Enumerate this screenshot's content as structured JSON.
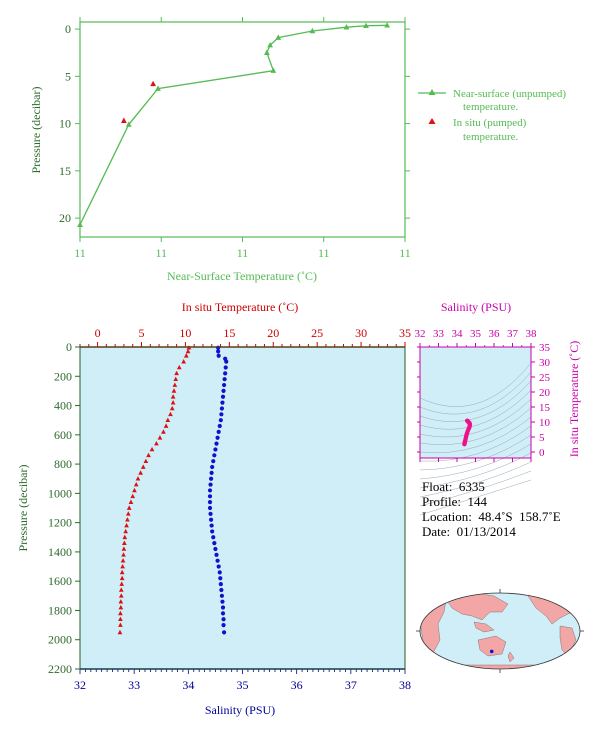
{
  "colors": {
    "green": "#55bb55",
    "green_dark": "#2e6b2e",
    "red": "#dd1111",
    "red_axis": "#cc0000",
    "blue": "#1111cc",
    "blue_axis": "#000099",
    "magenta": "#cc00aa",
    "pink_marker": "#ee1188",
    "panel_bg": "#cfeef8",
    "land": "#f2a6a6"
  },
  "chart_data": [
    {
      "type": "line",
      "xlabel": "Near-Surface Temperature (˚C)",
      "ylabel": "Pressure (decibar)",
      "xticks": [
        "11",
        "11",
        "11",
        "11",
        "11"
      ],
      "yticks": [
        0,
        5,
        10,
        15,
        20
      ],
      "ylim": [
        0,
        22
      ],
      "legend": {
        "placement": "right",
        "entries": [
          {
            "label_line1": "Near-surface (unpumped)",
            "label_line2": "temperature."
          },
          {
            "label_line1": "In situ (pumped)",
            "label_line2": "temperature."
          }
        ]
      },
      "series": [
        {
          "name": "Near-surface (unpumped) temperature.",
          "marker": "triangle",
          "x": [
            0.0,
            0.15,
            0.24,
            0.595,
            0.575,
            0.585,
            0.61,
            0.715,
            0.82,
            0.88,
            0.945
          ],
          "y": [
            20.7,
            10.1,
            6.3,
            4.4,
            2.5,
            1.7,
            0.9,
            0.2,
            -0.2,
            -0.35,
            -0.4
          ]
        },
        {
          "name": "In situ (pumped) temperature.",
          "marker": "triangle",
          "x": [
            0.135,
            0.225
          ],
          "y": [
            9.7,
            5.8
          ]
        }
      ]
    },
    {
      "type": "scatter",
      "top_xlabel": "In situ Temperature (˚C)",
      "bottom_xlabel": "Salinity (PSU)",
      "ylabel": "Pressure (decibar)",
      "temperature_ticks": [
        0,
        5,
        10,
        15,
        20,
        25,
        30,
        35
      ],
      "salinity_ticks": [
        32,
        33,
        34,
        35,
        36,
        37,
        38
      ],
      "pressure_ticks": [
        0,
        200,
        400,
        600,
        800,
        1000,
        1200,
        1400,
        1600,
        1800,
        2000,
        2200
      ],
      "series": [
        {
          "name": "In situ Temperature",
          "pressure": [
            5,
            30,
            60,
            100,
            140,
            180,
            220,
            260,
            300,
            340,
            380,
            420,
            460,
            500,
            540,
            580,
            620,
            660,
            700,
            740,
            780,
            820,
            860,
            900,
            940,
            980,
            1020,
            1060,
            1100,
            1140,
            1180,
            1220,
            1260,
            1300,
            1340,
            1380,
            1420,
            1460,
            1500,
            1540,
            1580,
            1620,
            1660,
            1700,
            1740,
            1780,
            1820,
            1860,
            1900,
            1950
          ],
          "values": [
            10.4,
            10.3,
            10.1,
            9.8,
            9.3,
            9.0,
            8.9,
            8.8,
            8.7,
            8.6,
            8.6,
            8.5,
            8.3,
            8.0,
            7.8,
            7.5,
            7.1,
            6.7,
            6.2,
            5.8,
            5.5,
            5.2,
            4.9,
            4.6,
            4.4,
            4.2,
            4.0,
            3.8,
            3.6,
            3.5,
            3.4,
            3.3,
            3.2,
            3.1,
            3.05,
            3.0,
            2.95,
            2.9,
            2.85,
            2.8,
            2.8,
            2.75,
            2.7,
            2.7,
            2.65,
            2.65,
            2.6,
            2.6,
            2.6,
            2.55
          ]
        },
        {
          "name": "Salinity",
          "pressure": [
            5,
            30,
            60,
            80,
            100,
            140,
            180,
            220,
            260,
            300,
            340,
            380,
            420,
            460,
            500,
            540,
            580,
            620,
            660,
            700,
            740,
            780,
            820,
            860,
            900,
            940,
            980,
            1020,
            1060,
            1100,
            1140,
            1180,
            1220,
            1260,
            1300,
            1340,
            1380,
            1420,
            1460,
            1500,
            1540,
            1580,
            1620,
            1660,
            1700,
            1740,
            1780,
            1820,
            1860,
            1900,
            1950
          ],
          "values": [
            34.55,
            34.55,
            34.56,
            34.68,
            34.7,
            34.69,
            34.68,
            34.67,
            34.66,
            34.65,
            34.64,
            34.63,
            34.62,
            34.61,
            34.6,
            34.58,
            34.56,
            34.54,
            34.52,
            34.5,
            34.48,
            34.46,
            34.44,
            34.43,
            34.42,
            34.41,
            34.4,
            34.4,
            34.4,
            34.4,
            34.41,
            34.42,
            34.43,
            34.44,
            34.46,
            34.48,
            34.5,
            34.52,
            34.54,
            34.56,
            34.58,
            34.59,
            34.6,
            34.61,
            34.62,
            34.63,
            34.64,
            34.64,
            34.65,
            34.65,
            34.66
          ]
        }
      ]
    },
    {
      "type": "scatter",
      "top_xlabel": "Salinity (PSU)",
      "right_ylabel": "In situ Temperature (˚C)",
      "salinity_ticks": [
        32,
        33,
        34,
        35,
        36,
        37,
        38
      ],
      "temperature_ticks": [
        0,
        5,
        10,
        15,
        20,
        25,
        30,
        35
      ],
      "series": [
        {
          "name": "T-S",
          "salinity": [
            34.4,
            34.41,
            34.42,
            34.44,
            34.46,
            34.48,
            34.5,
            34.52,
            34.55,
            34.58,
            34.62,
            34.66,
            34.68,
            34.69,
            34.7,
            34.68,
            34.64,
            34.6,
            34.58,
            34.56,
            34.55
          ],
          "temperature": [
            2.6,
            2.9,
            3.3,
            3.7,
            4.2,
            4.8,
            5.3,
            5.9,
            6.4,
            7.0,
            7.6,
            8.1,
            8.5,
            8.9,
            9.2,
            9.6,
            9.9,
            10.1,
            10.3,
            10.4,
            10.4
          ]
        }
      ]
    }
  ],
  "float_info": {
    "float_label": "Float:",
    "float_value": "6335",
    "profile_label": "Profile:",
    "profile_value": "144",
    "location_label": "Location:",
    "location_value": "48.4˚S  158.7˚E",
    "date_label": "Date:",
    "date_value": "01/13/2014"
  },
  "map": {
    "float_position": {
      "lat": -48.4,
      "lon": 158.7
    }
  }
}
